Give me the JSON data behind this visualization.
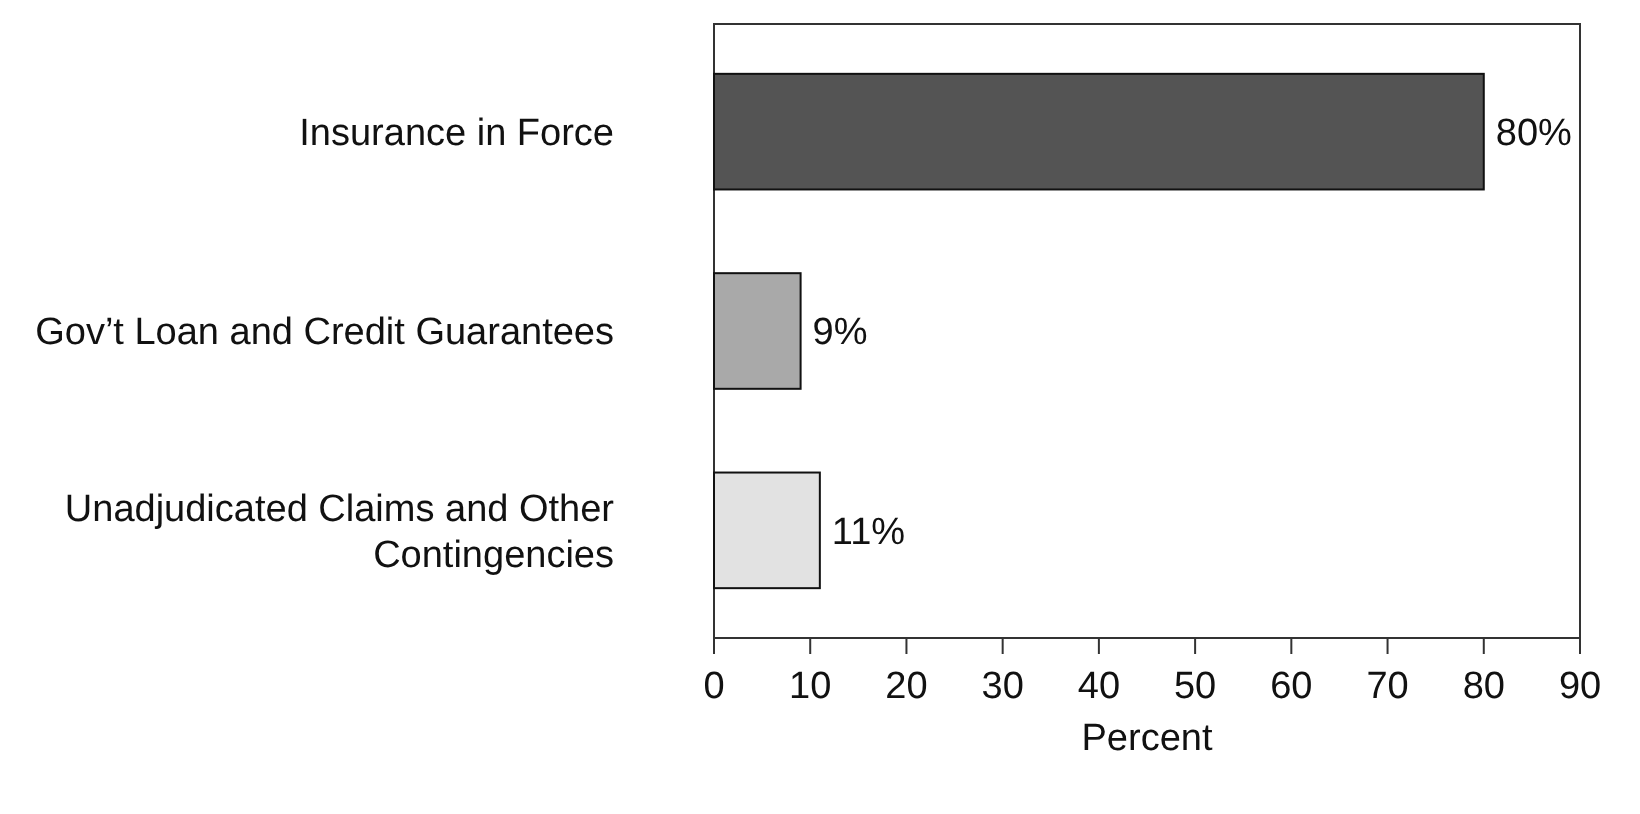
{
  "chart_data": {
    "type": "bar",
    "orientation": "horizontal",
    "xlabel": "Percent",
    "categories": [
      "Insurance in Force",
      "Gov’t Loan and Credit Guarantees",
      "Unadjudicated Claims and Other Contingencies"
    ],
    "values": [
      80,
      9,
      11
    ],
    "colors": [
      "#545454",
      "#a9a9a9",
      "#e2e2e2"
    ],
    "value_labels": [
      "80%",
      "9%",
      "11%"
    ],
    "xlim": [
      0,
      90
    ],
    "xticks": [
      0,
      10,
      20,
      30,
      40,
      50,
      60,
      70,
      80,
      90
    ]
  }
}
